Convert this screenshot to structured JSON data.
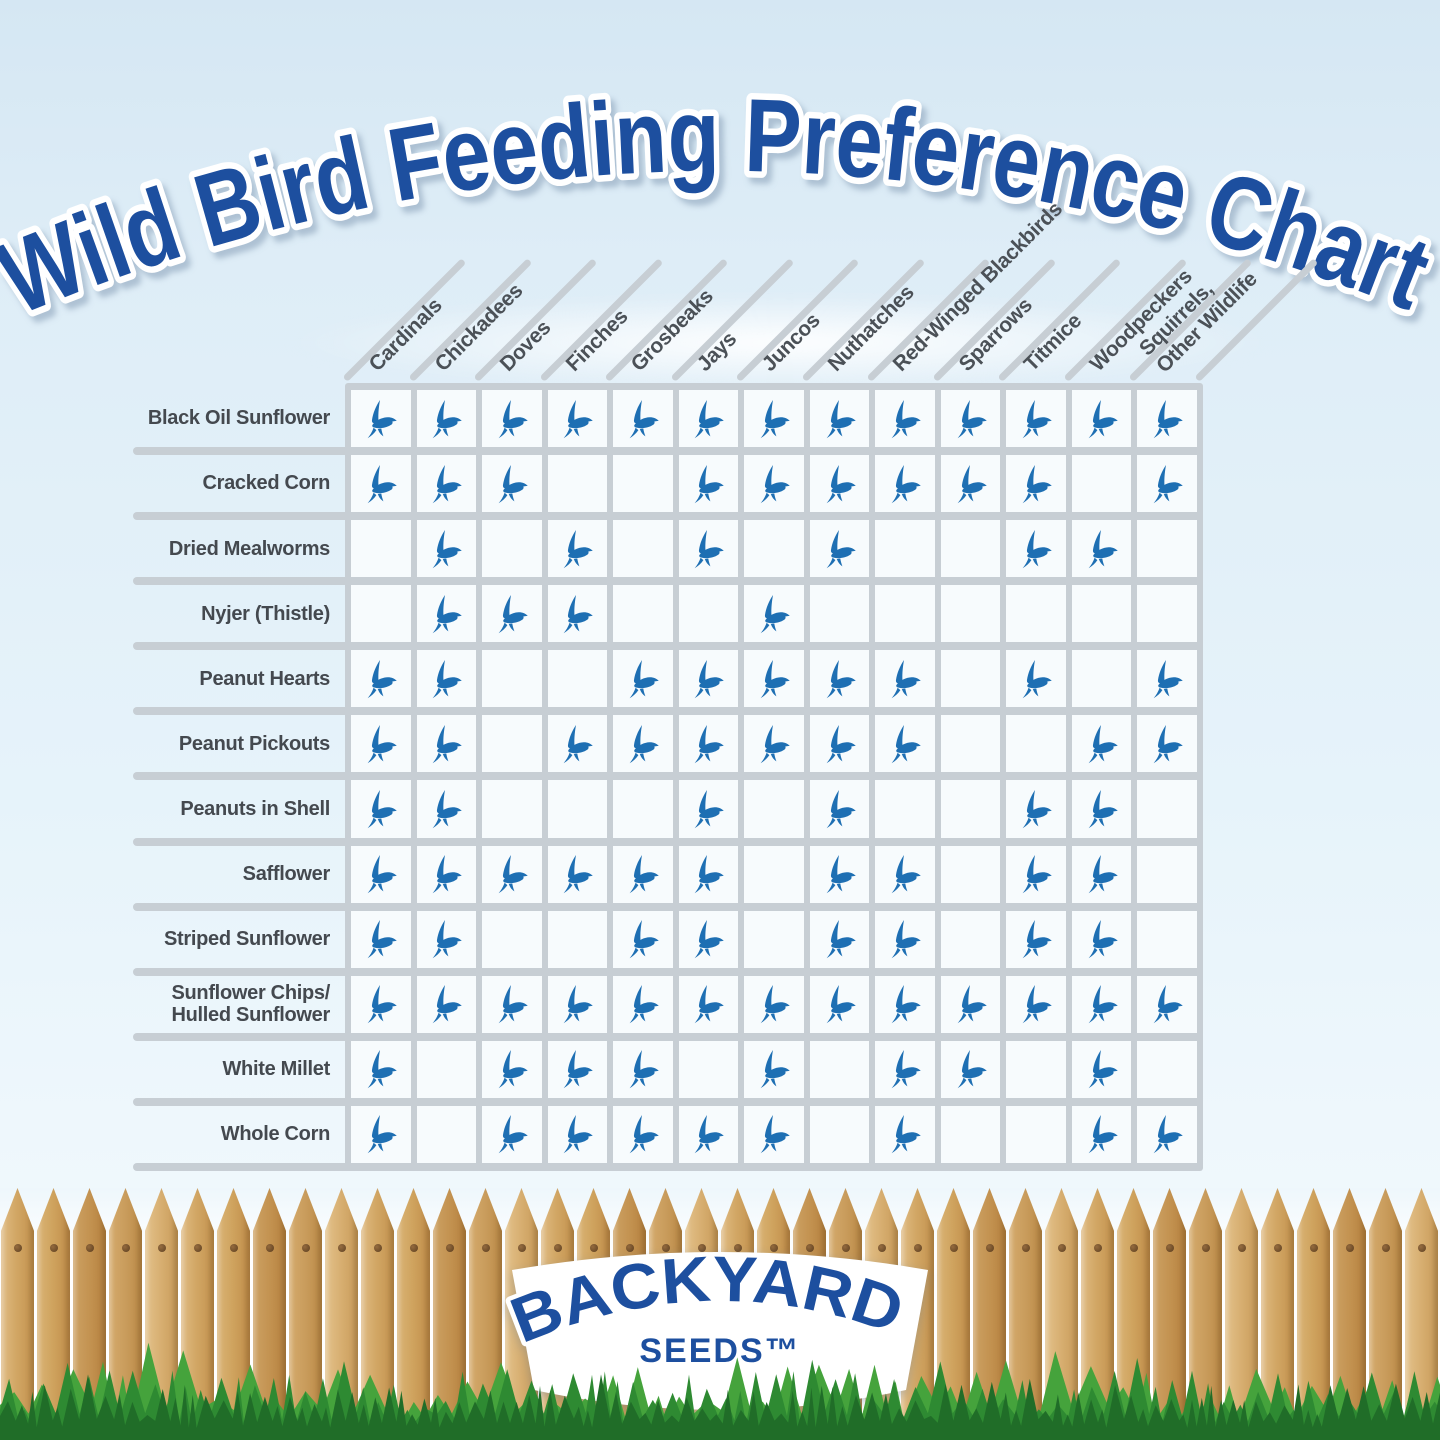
{
  "header": {
    "title": "Wild Bird Feeding Preference Chart"
  },
  "chart_data": {
    "type": "table",
    "title": "Wild Bird Feeding Preference Chart",
    "columns": [
      "Cardinals",
      "Chickadees",
      "Doves",
      "Finches",
      "Grosbeaks",
      "Jays",
      "Juncos",
      "Nuthatches",
      "Red-Winged Blackbirds",
      "Sparrows",
      "Titmice",
      "Woodpeckers",
      "Squirrels,\nOther Wildlife"
    ],
    "rows": [
      {
        "label": "Black Oil Sunflower",
        "values": [
          1,
          1,
          1,
          1,
          1,
          1,
          1,
          1,
          1,
          1,
          1,
          1,
          1
        ]
      },
      {
        "label": "Cracked Corn",
        "values": [
          1,
          1,
          1,
          0,
          0,
          1,
          1,
          1,
          1,
          1,
          1,
          0,
          1
        ]
      },
      {
        "label": "Dried Mealworms",
        "values": [
          0,
          1,
          0,
          1,
          0,
          1,
          0,
          1,
          0,
          0,
          1,
          1,
          0
        ]
      },
      {
        "label": "Nyjer (Thistle)",
        "values": [
          0,
          1,
          1,
          1,
          0,
          0,
          1,
          0,
          0,
          0,
          0,
          0,
          0
        ]
      },
      {
        "label": "Peanut Hearts",
        "values": [
          1,
          1,
          0,
          0,
          1,
          1,
          1,
          1,
          1,
          0,
          1,
          0,
          1
        ]
      },
      {
        "label": "Peanut Pickouts",
        "values": [
          1,
          1,
          0,
          1,
          1,
          1,
          1,
          1,
          1,
          0,
          0,
          1,
          1
        ]
      },
      {
        "label": "Peanuts in Shell",
        "values": [
          1,
          1,
          0,
          0,
          0,
          1,
          0,
          1,
          0,
          0,
          1,
          1,
          0
        ]
      },
      {
        "label": "Safflower",
        "values": [
          1,
          1,
          1,
          1,
          1,
          1,
          0,
          1,
          1,
          0,
          1,
          1,
          0
        ]
      },
      {
        "label": "Striped Sunflower",
        "values": [
          1,
          1,
          0,
          0,
          1,
          1,
          0,
          1,
          1,
          0,
          1,
          1,
          0
        ]
      },
      {
        "label": "Sunflower Chips/\nHulled Sunflower",
        "values": [
          1,
          1,
          1,
          1,
          1,
          1,
          1,
          1,
          1,
          1,
          1,
          1,
          1
        ]
      },
      {
        "label": "White Millet",
        "values": [
          1,
          0,
          1,
          1,
          1,
          0,
          1,
          0,
          1,
          1,
          0,
          1,
          0
        ]
      },
      {
        "label": "Whole Corn",
        "values": [
          1,
          0,
          1,
          1,
          1,
          1,
          1,
          0,
          1,
          0,
          0,
          1,
          1
        ]
      }
    ],
    "marker": "blue flying bird icon = bird feeds on this food; blank = not preferred"
  },
  "footer": {
    "brand_name": "BACKYARD",
    "brand_sub": "SEEDS™"
  },
  "icons": {
    "cell_marker_icon": "bird-icon"
  },
  "colors": {
    "title_blue": "#1d4f9f",
    "bird_blue": "#1e6fb3",
    "grid_line": "#c7ced4",
    "cell_bg": "#f7fbfd",
    "label_gray": "#44494f",
    "grass_back": "#45a33c",
    "grass_mid": "#2e8a32",
    "grass_front": "#206d28",
    "wood_tan": "#d2a765"
  }
}
